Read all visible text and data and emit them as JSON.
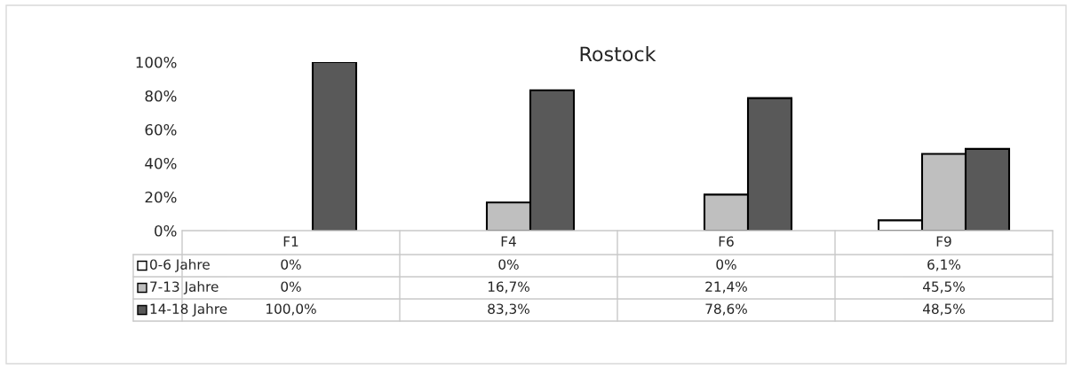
{
  "chart_data": {
    "type": "bar",
    "title": "Rostock",
    "categories": [
      "F1",
      "F4",
      "F6",
      "F9"
    ],
    "series": [
      {
        "name": "0-6 Jahre",
        "color": "#ffffff",
        "values": [
          0,
          0,
          0,
          6.1
        ],
        "value_labels": [
          "0%",
          "0%",
          "0%",
          "6,1%"
        ]
      },
      {
        "name": "7-13 Jahre",
        "color": "#bfbfbf",
        "values": [
          0,
          16.7,
          21.4,
          45.5
        ],
        "value_labels": [
          "0%",
          "16,7%",
          "21,4%",
          "45,5%"
        ]
      },
      {
        "name": "14-18 Jahre",
        "color": "#595959",
        "values": [
          100,
          83.3,
          78.6,
          48.5
        ],
        "value_labels": [
          "100,0%",
          "83,3%",
          "78,6%",
          "48,5%"
        ]
      }
    ],
    "ylim": [
      0,
      100
    ],
    "yticks": [
      {
        "value": 0,
        "label": "0%"
      },
      {
        "value": 20,
        "label": "20%"
      },
      {
        "value": 40,
        "label": "40%"
      },
      {
        "value": 60,
        "label": "60%"
      },
      {
        "value": 80,
        "label": "80%"
      },
      {
        "value": 100,
        "label": "100%"
      }
    ],
    "grid": false,
    "legend": "bottom"
  }
}
